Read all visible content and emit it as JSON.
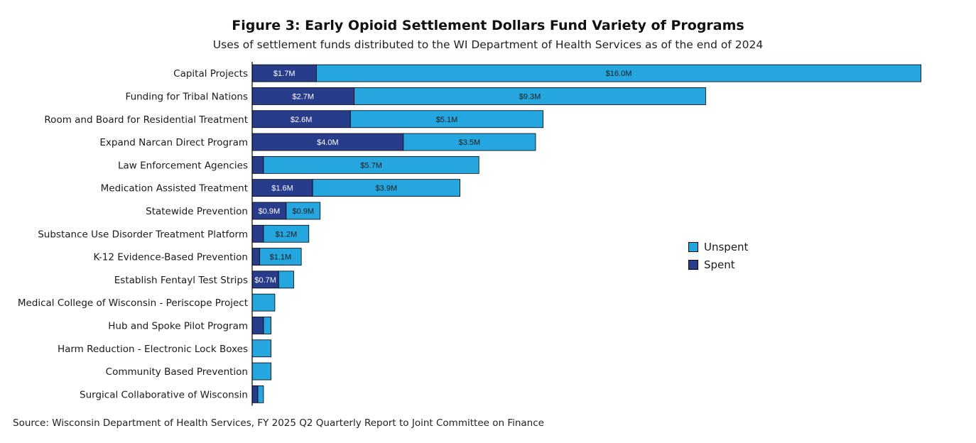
{
  "title": "Figure 3: Early Opioid Settlement Dollars Fund Variety of Programs",
  "subtitle": "Uses of settlement funds distributed to the WI Department of Health Services as of the end of 2024",
  "source": "Source: Wisconsin Department of Health Services, FY 2025 Q2 Quarterly Report to Joint Committee on Finance",
  "colors": {
    "spent": "#283c8c",
    "unspent": "#26a6df",
    "axis": "#000000"
  },
  "legend": {
    "position": "right",
    "unspent_label": "Unspent",
    "spent_label": "Spent"
  },
  "chart_data": {
    "type": "bar",
    "orientation": "horizontal",
    "stacked": true,
    "units": "$M",
    "categories": [
      "Capital Projects",
      "Funding for Tribal Nations",
      "Room and Board for Residential Treatment",
      "Expand Narcan Direct Program",
      "Law Enforcement Agencies",
      "Medication Assisted Treatment",
      "Statewide Prevention",
      "Substance Use Disorder Treatment Platform",
      "K-12 Evidence-Based Prevention",
      "Establish Fentayl Test Strips",
      "Medical College of Wisconsin - Periscope Project",
      "Hub and Spoke Pilot Program",
      "Harm Reduction - Electronic Lock Boxes",
      "Community Based Prevention",
      "Surgical Collaborative of Wisconsin"
    ],
    "series": [
      {
        "name": "Spent",
        "values": [
          1.7,
          2.7,
          2.6,
          4.0,
          0.3,
          1.6,
          0.9,
          0.3,
          0.2,
          0.7,
          0.0,
          0.3,
          0.0,
          0.0,
          0.15
        ],
        "labels": [
          "$1.7M",
          "$2.7M",
          "$2.6M",
          "$4.0M",
          "",
          "$1.6M",
          "$0.9M",
          "",
          "",
          "$0.7M",
          "",
          "",
          "",
          "",
          ""
        ]
      },
      {
        "name": "Unspent",
        "values": [
          16.0,
          9.3,
          5.1,
          3.5,
          5.7,
          3.9,
          0.9,
          1.2,
          1.1,
          0.4,
          0.6,
          0.2,
          0.5,
          0.5,
          0.15
        ],
        "labels": [
          "$16.0M",
          "$9.3M",
          "$5.1M",
          "$3.5M",
          "$5.7M",
          "$3.9M",
          "$0.9M",
          "$1.2M",
          "$1.1M",
          "",
          "",
          "",
          "",
          "",
          ""
        ]
      }
    ],
    "xlim": [
      0,
      18
    ],
    "grid": false
  }
}
